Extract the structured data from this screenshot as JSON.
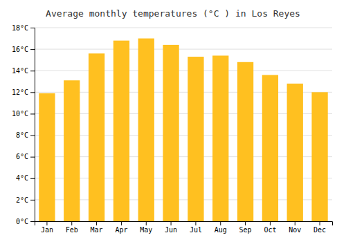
{
  "chart_data": {
    "type": "bar",
    "title": "Average monthly temperatures (°C ) in Los Reyes",
    "categories": [
      "Jan",
      "Feb",
      "Mar",
      "Apr",
      "May",
      "Jun",
      "Jul",
      "Aug",
      "Sep",
      "Oct",
      "Nov",
      "Dec"
    ],
    "values": [
      11.9,
      13.1,
      15.6,
      16.8,
      17.0,
      16.4,
      15.3,
      15.4,
      14.8,
      13.6,
      12.8,
      12.0
    ],
    "color": "#FFC020",
    "ylim": [
      0,
      18
    ],
    "yticks": [
      {
        "value": 0,
        "label": "0°C"
      },
      {
        "value": 2,
        "label": "2°C"
      },
      {
        "value": 4,
        "label": "4°C"
      },
      {
        "value": 6,
        "label": "6°C"
      },
      {
        "value": 8,
        "label": "8°C"
      },
      {
        "value": 10,
        "label": "10°C"
      },
      {
        "value": 12,
        "label": "12°C"
      },
      {
        "value": 14,
        "label": "14°C"
      },
      {
        "value": 16,
        "label": "16°C"
      },
      {
        "value": 18,
        "label": "18°C"
      }
    ],
    "grid": true
  }
}
